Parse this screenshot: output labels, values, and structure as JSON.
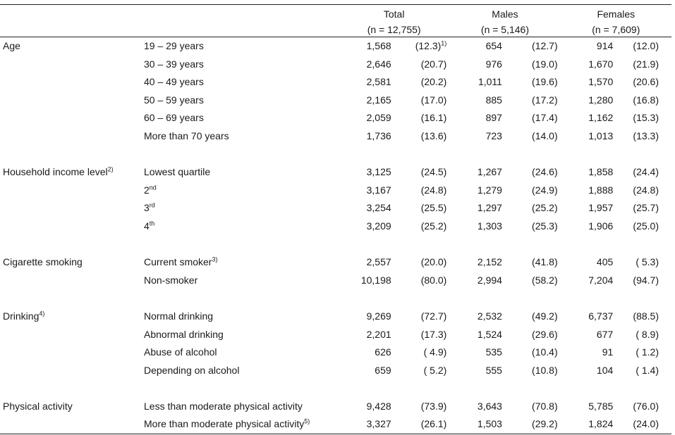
{
  "header": {
    "groups": [
      {
        "name": "Total",
        "n": "(n = 12,755)"
      },
      {
        "name": "Males",
        "n": "(n = 5,146)"
      },
      {
        "name": "Females",
        "n": "(n = 7,609)"
      }
    ]
  },
  "sections": {
    "age": {
      "label": "Age",
      "rows": [
        {
          "label": "19 – 29 years",
          "t_n": "1,568",
          "t_p": "(12.3)",
          "t_sup": "1)",
          "m_n": "654",
          "m_p": "(12.7)",
          "f_n": "914",
          "f_p": "(12.0)"
        },
        {
          "label": "30 – 39 years",
          "t_n": "2,646",
          "t_p": "(20.7)",
          "m_n": "976",
          "m_p": "(19.0)",
          "f_n": "1,670",
          "f_p": "(21.9)"
        },
        {
          "label": "40 – 49 years",
          "t_n": "2,581",
          "t_p": "(20.2)",
          "m_n": "1,011",
          "m_p": "(19.6)",
          "f_n": "1,570",
          "f_p": "(20.6)"
        },
        {
          "label": "50 – 59 years",
          "t_n": "2,165",
          "t_p": "(17.0)",
          "m_n": "885",
          "m_p": "(17.2)",
          "f_n": "1,280",
          "f_p": "(16.8)"
        },
        {
          "label": "60 – 69 years",
          "t_n": "2,059",
          "t_p": "(16.1)",
          "m_n": "897",
          "m_p": "(17.4)",
          "f_n": "1,162",
          "f_p": "(15.3)"
        },
        {
          "label": "More than 70 years",
          "t_n": "1,736",
          "t_p": "(13.6)",
          "m_n": "723",
          "m_p": "(14.0)",
          "f_n": "1,013",
          "f_p": "(13.3)"
        }
      ]
    },
    "income": {
      "label": "Household income level",
      "label_sup": "2)",
      "rows": [
        {
          "label": "Lowest quartile",
          "t_n": "3,125",
          "t_p": "(24.5)",
          "m_n": "1,267",
          "m_p": "(24.6)",
          "f_n": "1,858",
          "f_p": "(24.4)"
        },
        {
          "label": "2",
          "label_sup": "nd",
          "t_n": "3,167",
          "t_p": "(24.8)",
          "m_n": "1,279",
          "m_p": "(24.9)",
          "f_n": "1,888",
          "f_p": "(24.8)"
        },
        {
          "label": "3",
          "label_sup": "rd",
          "t_n": "3,254",
          "t_p": "(25.5)",
          "m_n": "1,297",
          "m_p": "(25.2)",
          "f_n": "1,957",
          "f_p": "(25.7)"
        },
        {
          "label": "4",
          "label_sup": "th",
          "t_n": "3,209",
          "t_p": "(25.2)",
          "m_n": "1,303",
          "m_p": "(25.3)",
          "f_n": "1,906",
          "f_p": "(25.0)"
        }
      ]
    },
    "smoking": {
      "label": "Cigarette smoking",
      "rows": [
        {
          "label": "Current smoker",
          "label_sup": "3)",
          "t_n": "2,557",
          "t_p": "(20.0)",
          "m_n": "2,152",
          "m_p": "(41.8)",
          "f_n": "405",
          "f_p": "( 5.3)"
        },
        {
          "label": "Non-smoker",
          "t_n": "10,198",
          "t_p": "(80.0)",
          "m_n": "2,994",
          "m_p": "(58.2)",
          "f_n": "7,204",
          "f_p": "(94.7)"
        }
      ]
    },
    "drinking": {
      "label": "Drinking",
      "label_sup": "4)",
      "rows": [
        {
          "label": "Normal drinking",
          "t_n": "9,269",
          "t_p": "(72.7)",
          "m_n": "2,532",
          "m_p": "(49.2)",
          "f_n": "6,737",
          "f_p": "(88.5)"
        },
        {
          "label": "Abnormal drinking",
          "t_n": "2,201",
          "t_p": "(17.3)",
          "m_n": "1,524",
          "m_p": "(29.6)",
          "f_n": "677",
          "f_p": "( 8.9)"
        },
        {
          "label": "Abuse of alcohol",
          "t_n": "626",
          "t_p": "( 4.9)",
          "m_n": "535",
          "m_p": "(10.4)",
          "f_n": "91",
          "f_p": "( 1.2)"
        },
        {
          "label": "Depending on alcohol",
          "t_n": "659",
          "t_p": "( 5.2)",
          "m_n": "555",
          "m_p": "(10.8)",
          "f_n": "104",
          "f_p": "( 1.4)"
        }
      ]
    },
    "activity": {
      "label": "Physical activity",
      "rows": [
        {
          "label": "Less than moderate physical activity",
          "t_n": "9,428",
          "t_p": "(73.9)",
          "m_n": "3,643",
          "m_p": "(70.8)",
          "f_n": "5,785",
          "f_p": "(76.0)"
        },
        {
          "label": "More than moderate physical activity",
          "label_sup": "5)",
          "t_n": "3,327",
          "t_p": "(26.1)",
          "m_n": "1,503",
          "m_p": "(29.2)",
          "f_n": "1,824",
          "f_p": "(24.0)"
        }
      ]
    }
  }
}
